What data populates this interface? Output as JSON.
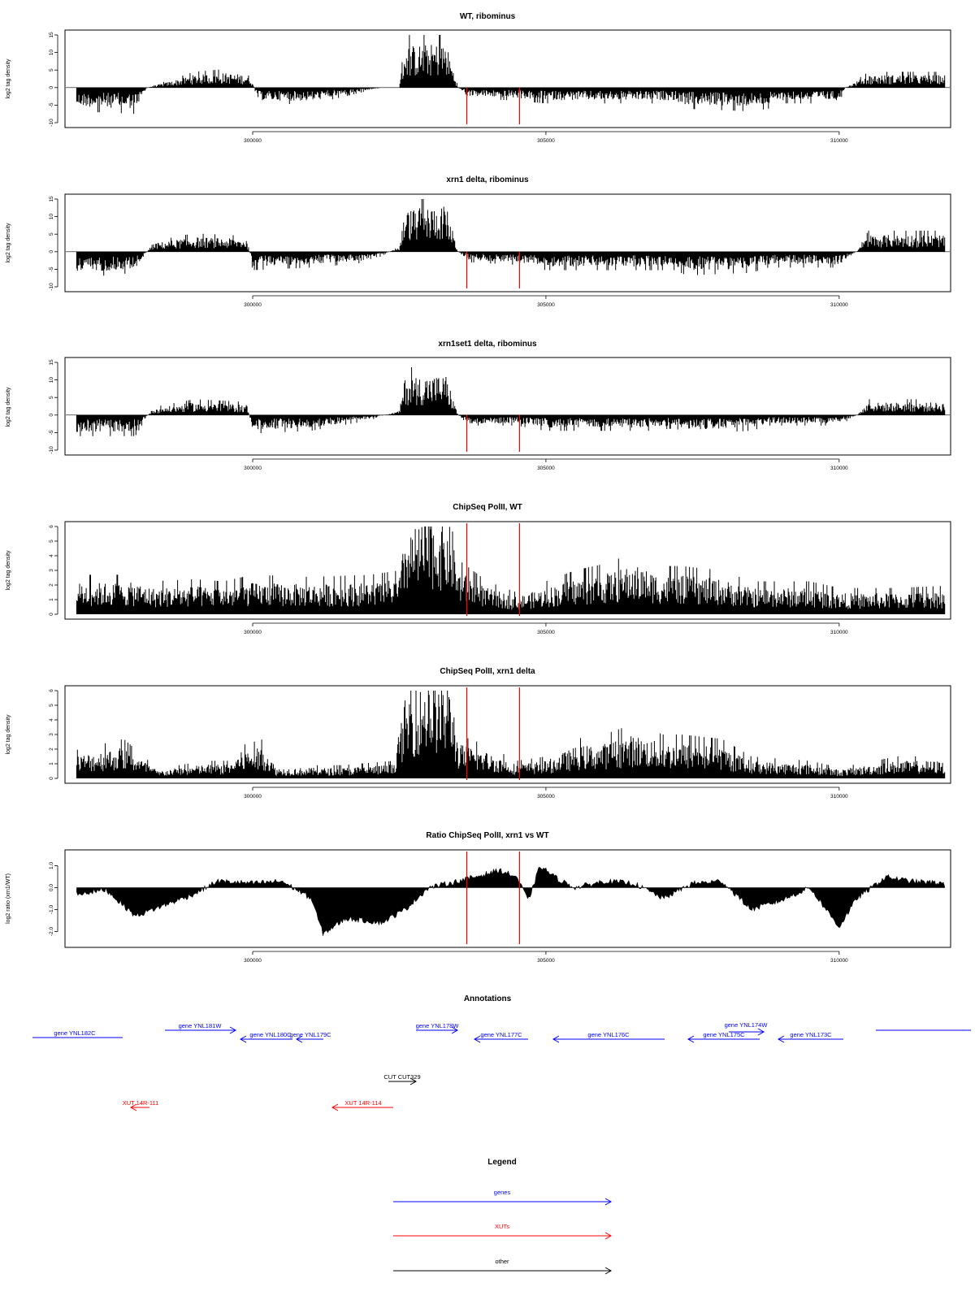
{
  "figure": {
    "annotations_title": "Annotations",
    "legend_title": "Legend"
  },
  "colors": {
    "gene": "#0000ff",
    "xut": "#ff0000",
    "other": "#000000",
    "bars": "#000000",
    "marker": "#ff0000",
    "frame": "#000000"
  },
  "chart_data": [
    {
      "type": "bar",
      "title": "WT, ribominus",
      "ylabel": "log2 tag density",
      "xlim": [
        296800,
        311900
      ],
      "ylim": [
        -10,
        15
      ],
      "yticks": [
        "15",
        "10",
        "5",
        "0",
        "-5",
        "-10"
      ],
      "yticks_values": [
        15,
        10,
        5,
        0,
        -5,
        -10
      ],
      "xticks": [
        "300000",
        "305000",
        "310000"
      ],
      "xticks_values": [
        300000,
        305000,
        310000
      ],
      "markers_x": [
        303650,
        304550
      ],
      "profile": [
        [
          297000,
          -4.5
        ],
        [
          298000,
          -5
        ],
        [
          298200,
          0
        ],
        [
          299000,
          3
        ],
        [
          299500,
          3.5
        ],
        [
          299950,
          3
        ],
        [
          300100,
          -3
        ],
        [
          301000,
          -3.2
        ],
        [
          302200,
          0
        ],
        [
          302500,
          0
        ],
        [
          302600,
          10
        ],
        [
          303300,
          10.5
        ],
        [
          303500,
          0
        ],
        [
          303700,
          -2
        ],
        [
          304500,
          -2.5
        ],
        [
          305000,
          -3
        ],
        [
          306500,
          -3
        ],
        [
          307200,
          -3
        ],
        [
          307300,
          -4
        ],
        [
          308500,
          -4.5
        ],
        [
          308800,
          -4
        ],
        [
          309000,
          -3
        ],
        [
          310000,
          -3
        ],
        [
          310100,
          0
        ],
        [
          310500,
          3
        ],
        [
          311800,
          3
        ]
      ]
    },
    {
      "type": "bar",
      "title": "xrn1 delta, ribominus",
      "ylabel": "log2 tag density",
      "xlim": [
        296800,
        311900
      ],
      "ylim": [
        -10,
        15
      ],
      "yticks": [
        "15",
        "10",
        "5",
        "0",
        "-5",
        "-10"
      ],
      "yticks_values": [
        15,
        10,
        5,
        0,
        -5,
        -10
      ],
      "xticks": [
        "300000",
        "305000",
        "310000"
      ],
      "xticks_values": [
        300000,
        305000,
        310000
      ],
      "markers_x": [
        303650,
        304550
      ],
      "profile": [
        [
          297000,
          -5
        ],
        [
          298000,
          -4
        ],
        [
          298300,
          2
        ],
        [
          299000,
          3.5
        ],
        [
          299900,
          3
        ],
        [
          300000,
          -3.5
        ],
        [
          301000,
          -3
        ],
        [
          302000,
          -2
        ],
        [
          302500,
          1
        ],
        [
          302600,
          10
        ],
        [
          303300,
          11
        ],
        [
          303500,
          0
        ],
        [
          303700,
          -2
        ],
        [
          304500,
          -2.5
        ],
        [
          305000,
          -3.5
        ],
        [
          306800,
          -3.5
        ],
        [
          307200,
          -3.5
        ],
        [
          307400,
          -4.5
        ],
        [
          308500,
          -4
        ],
        [
          308800,
          -3
        ],
        [
          310000,
          -3
        ],
        [
          310300,
          0
        ],
        [
          310500,
          4
        ],
        [
          311800,
          4
        ]
      ]
    },
    {
      "type": "bar",
      "title": "xrn1set1 delta, ribominus",
      "ylabel": "log2 tag density",
      "xlim": [
        296800,
        311900
      ],
      "ylim": [
        -10,
        15
      ],
      "yticks": [
        "15",
        "10",
        "5",
        "0",
        "-5",
        "-10"
      ],
      "yticks_values": [
        15,
        10,
        5,
        0,
        -5,
        -10
      ],
      "xticks": [
        "300000",
        "305000",
        "310000"
      ],
      "xticks_values": [
        300000,
        305000,
        310000
      ],
      "markers_x": [
        303650,
        304550
      ],
      "profile": [
        [
          297000,
          -4
        ],
        [
          298000,
          -4
        ],
        [
          298300,
          1.5
        ],
        [
          299000,
          3
        ],
        [
          299900,
          2.5
        ],
        [
          300000,
          -3.5
        ],
        [
          301000,
          -3
        ],
        [
          302000,
          -1
        ],
        [
          302500,
          1
        ],
        [
          302600,
          9
        ],
        [
          303300,
          9.5
        ],
        [
          303500,
          0
        ],
        [
          303700,
          -2
        ],
        [
          304500,
          -2
        ],
        [
          305000,
          -3
        ],
        [
          306800,
          -3
        ],
        [
          307200,
          -2.5
        ],
        [
          307400,
          -3.5
        ],
        [
          308500,
          -3
        ],
        [
          308800,
          -2
        ],
        [
          310000,
          -2
        ],
        [
          310300,
          0
        ],
        [
          310500,
          3
        ],
        [
          311800,
          3
        ]
      ]
    },
    {
      "type": "bar",
      "title": "ChipSeq PolII, WT",
      "ylabel": "log2 tag density",
      "xlim": [
        296800,
        311900
      ],
      "ylim": [
        0,
        6
      ],
      "yticks": [
        "6",
        "5",
        "4",
        "3",
        "2",
        "1",
        "0"
      ],
      "yticks_values": [
        6,
        5,
        4,
        3,
        2,
        1,
        0
      ],
      "xticks": [
        "300000",
        "305000",
        "310000"
      ],
      "xticks_values": [
        300000,
        305000,
        310000
      ],
      "markers_x": [
        303650,
        304550
      ],
      "profile": [
        [
          297000,
          1.8
        ],
        [
          298000,
          1.8
        ],
        [
          298300,
          1.5
        ],
        [
          299000,
          1.6
        ],
        [
          299500,
          1.5
        ],
        [
          300000,
          1.8
        ],
        [
          301000,
          1.7
        ],
        [
          302000,
          1.8
        ],
        [
          302500,
          2
        ],
        [
          302600,
          4.5
        ],
        [
          303000,
          5.5
        ],
        [
          303400,
          5
        ],
        [
          303500,
          2.5
        ],
        [
          304000,
          1.5
        ],
        [
          304500,
          1
        ],
        [
          305000,
          1.5
        ],
        [
          305500,
          2
        ],
        [
          306000,
          2.3
        ],
        [
          306500,
          2.8
        ],
        [
          307000,
          2.2
        ],
        [
          307300,
          2.2
        ],
        [
          308000,
          2
        ],
        [
          308500,
          1.5
        ],
        [
          309500,
          1.5
        ],
        [
          310000,
          1.2
        ],
        [
          311000,
          1.2
        ],
        [
          311800,
          1.3
        ]
      ]
    },
    {
      "type": "bar",
      "title": "ChipSeq PolII, xrn1 delta",
      "ylabel": "log2 tag density",
      "xlim": [
        296800,
        311900
      ],
      "ylim": [
        0,
        6
      ],
      "yticks": [
        "6",
        "5",
        "4",
        "3",
        "2",
        "1",
        "0"
      ],
      "yticks_values": [
        6,
        5,
        4,
        3,
        2,
        1,
        0
      ],
      "xticks": [
        "300000",
        "305000",
        "310000"
      ],
      "xticks_values": [
        300000,
        305000,
        310000
      ],
      "markers_x": [
        303650,
        304550
      ],
      "profile": [
        [
          297000,
          1.3
        ],
        [
          297800,
          1.8
        ],
        [
          298400,
          0.4
        ],
        [
          298500,
          0.5
        ],
        [
          299200,
          0.8
        ],
        [
          299600,
          0.8
        ],
        [
          299800,
          1.5
        ],
        [
          300200,
          1.8
        ],
        [
          300400,
          0.6
        ],
        [
          301500,
          0.6
        ],
        [
          302400,
          0.8
        ],
        [
          302600,
          4.5
        ],
        [
          303000,
          5.5
        ],
        [
          303400,
          5
        ],
        [
          303500,
          2
        ],
        [
          304000,
          1.5
        ],
        [
          304500,
          0.8
        ],
        [
          305000,
          1
        ],
        [
          305500,
          1.8
        ],
        [
          306000,
          2
        ],
        [
          306500,
          2.5
        ],
        [
          307000,
          2
        ],
        [
          307300,
          2
        ],
        [
          308000,
          1.8
        ],
        [
          308500,
          1
        ],
        [
          309500,
          0.8
        ],
        [
          310000,
          0.5
        ],
        [
          311000,
          1
        ],
        [
          311800,
          1
        ]
      ]
    },
    {
      "type": "area",
      "title": "Ratio ChipSeq PolII, xrn1 vs WT",
      "ylabel": "log2 ratio (xrn1/WT)",
      "xlim": [
        296800,
        311900
      ],
      "ylim": [
        -2.5,
        1.5
      ],
      "yticks": [
        "1.0",
        "0.0",
        "-1.0",
        "-2.0"
      ],
      "yticks_values": [
        1,
        0,
        -1,
        -2
      ],
      "xticks": [
        "300000",
        "305000",
        "310000"
      ],
      "xticks_values": [
        300000,
        305000,
        310000
      ],
      "markers_x": [
        303650,
        304550
      ],
      "profile": [
        [
          297000,
          -0.3
        ],
        [
          297500,
          -0.1
        ],
        [
          298000,
          -1.3
        ],
        [
          298500,
          -0.8
        ],
        [
          299000,
          -0.3
        ],
        [
          299400,
          0.3
        ],
        [
          300000,
          0.2
        ],
        [
          300500,
          0.3
        ],
        [
          301000,
          -0.5
        ],
        [
          301200,
          -2.1
        ],
        [
          301600,
          -1.4
        ],
        [
          302200,
          -1.6
        ],
        [
          302600,
          -1
        ],
        [
          303000,
          0
        ],
        [
          303500,
          0.3
        ],
        [
          303800,
          0.5
        ],
        [
          304200,
          0.8
        ],
        [
          304500,
          0.5
        ],
        [
          304700,
          -0.6
        ],
        [
          304900,
          1
        ],
        [
          305200,
          0.4
        ],
        [
          305500,
          0
        ],
        [
          306000,
          0.3
        ],
        [
          306500,
          0.2
        ],
        [
          307000,
          -0.5
        ],
        [
          307500,
          0.2
        ],
        [
          308000,
          0.3
        ],
        [
          308500,
          -1
        ],
        [
          309000,
          -0.6
        ],
        [
          309500,
          0
        ],
        [
          310000,
          -1.8
        ],
        [
          310300,
          -0.5
        ],
        [
          310800,
          0.5
        ],
        [
          311200,
          0.3
        ],
        [
          311800,
          0.2
        ]
      ]
    }
  ],
  "annotations": {
    "genes": [
      {
        "label": "gene YNL182C"
      },
      {
        "label": "gene YNL181W"
      },
      {
        "label": "gene YNL180C"
      },
      {
        "label": "gene YNL179C"
      },
      {
        "label": "gene YNL178W"
      },
      {
        "label": "gene YNL177C"
      },
      {
        "label": "gene YNL176C"
      },
      {
        "label": "gene YNL175C"
      },
      {
        "label": "gene YNL174W"
      },
      {
        "label": "gene YNL173C"
      }
    ],
    "other": [
      {
        "label": "CUT CUT329"
      }
    ],
    "xuts": [
      {
        "label": "XUT 14R-111"
      },
      {
        "label": "XUT 14R-114"
      }
    ]
  },
  "legend": {
    "genes_label": "genes",
    "xuts_label": "XUTs",
    "other_label": "other"
  }
}
